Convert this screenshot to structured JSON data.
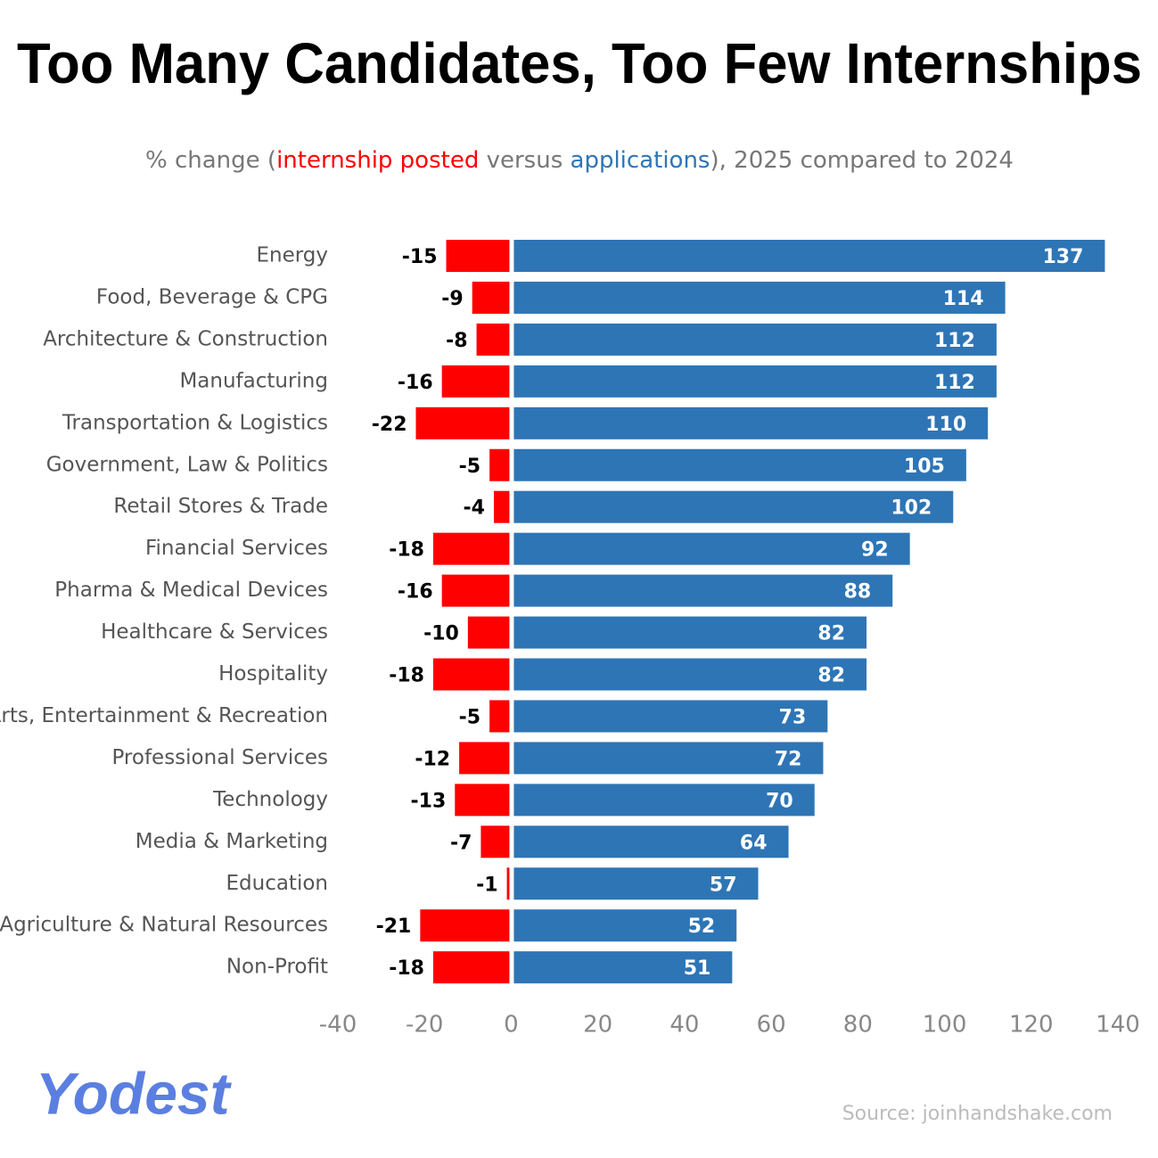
{
  "chart_data": {
    "type": "diverging_bar",
    "title": "Too Many Candidates, Too Few Internships",
    "subtitle_prefix": "% change (",
    "subtitle_middle": " versus ",
    "subtitle_suffix": "), 2025 compared to 2024",
    "source": "Source: joinhandshake.com",
    "logo": "Yodest",
    "categories": [
      "Energy",
      "Food, Beverage & CPG",
      "Architecture & Construction",
      "Manufacturing",
      "Transportation & Logistics",
      "Government, Law & Politics",
      "Retail Stores & Trade",
      "Financial Services",
      "Pharma & Medical Devices",
      "Healthcare & Services",
      "Hospitality",
      "Arts, Entertainment & Recreation",
      "Professional Services",
      "Technology",
      "Media & Marketing",
      "Education",
      "Agriculture & Natural Resources",
      "Non-Profit"
    ],
    "series": [
      {
        "name": "internship posted",
        "color": "#ff0000",
        "values": [
          -15,
          -9,
          -8,
          -16,
          -22,
          -5,
          -4,
          -18,
          -16,
          -10,
          -18,
          -5,
          -12,
          -13,
          -7,
          -1,
          -21,
          -18
        ]
      },
      {
        "name": "applications",
        "color": "#2e75b6",
        "values": [
          137,
          114,
          112,
          112,
          110,
          105,
          102,
          92,
          88,
          82,
          82,
          73,
          72,
          70,
          64,
          57,
          52,
          51
        ]
      }
    ],
    "xlim": [
      -40,
      140
    ],
    "xticks": [
      -40,
      -20,
      0,
      20,
      40,
      60,
      80,
      100,
      120,
      140
    ],
    "grid": false
  }
}
